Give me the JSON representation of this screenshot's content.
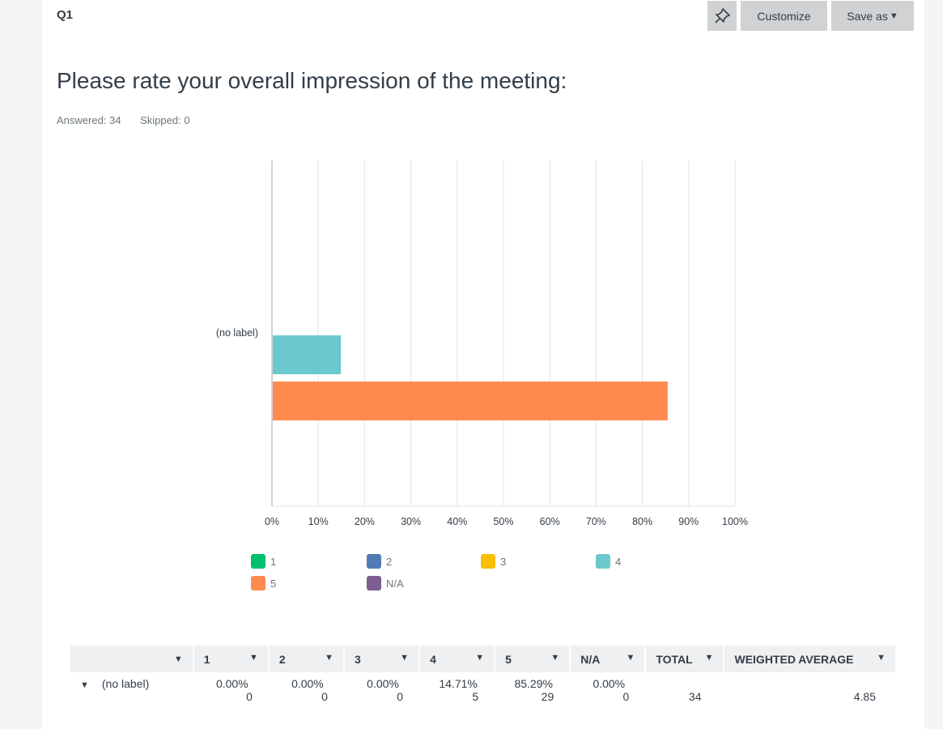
{
  "question": {
    "number": "Q1",
    "title": "Please rate your overall impression of the meeting:",
    "answered": "Answered: 34",
    "skipped": "Skipped: 0"
  },
  "toolbar": {
    "pin_icon": "pin-icon",
    "customize_label": "Customize",
    "save_label": "Save as",
    "caret": "▼"
  },
  "colors": {
    "1": "#00bf6f",
    "2": "#507cb6",
    "3": "#f9be00",
    "4": "#6bc8cd",
    "5": "#ff8b4f",
    "N/A": "#7d5e90"
  },
  "chart_data": {
    "type": "bar",
    "orientation": "horizontal",
    "categories": [
      "(no label)"
    ],
    "series": [
      {
        "name": "1",
        "values": [
          0
        ]
      },
      {
        "name": "2",
        "values": [
          0
        ]
      },
      {
        "name": "3",
        "values": [
          0
        ]
      },
      {
        "name": "4",
        "values": [
          14.71
        ]
      },
      {
        "name": "5",
        "values": [
          85.29
        ]
      },
      {
        "name": "N/A",
        "values": [
          0
        ]
      }
    ],
    "xlim": [
      0,
      100
    ],
    "x_ticks": [
      "0%",
      "10%",
      "20%",
      "30%",
      "40%",
      "50%",
      "60%",
      "70%",
      "80%",
      "90%",
      "100%"
    ],
    "grid": true,
    "legend": "bottom"
  },
  "legend": [
    "1",
    "2",
    "3",
    "4",
    "5",
    "N/A"
  ],
  "table": {
    "headers": [
      "",
      "1",
      "2",
      "3",
      "4",
      "5",
      "N/A",
      "TOTAL",
      "WEIGHTED AVERAGE"
    ],
    "dropdown": "▼",
    "rows": [
      {
        "label": "(no label)",
        "expander": "▼",
        "cells": [
          {
            "pct": "0.00%",
            "count": "0"
          },
          {
            "pct": "0.00%",
            "count": "0"
          },
          {
            "pct": "0.00%",
            "count": "0"
          },
          {
            "pct": "14.71%",
            "count": "5"
          },
          {
            "pct": "85.29%",
            "count": "29"
          },
          {
            "pct": "0.00%",
            "count": "0"
          }
        ],
        "total": "34",
        "weighted_average": "4.85"
      }
    ]
  }
}
